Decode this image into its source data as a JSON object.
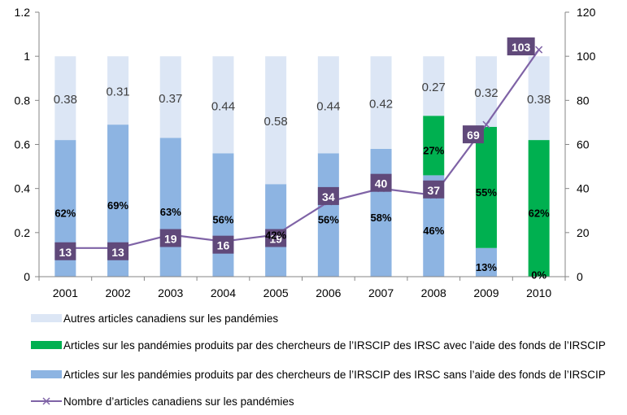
{
  "chart_data": {
    "type": "bar",
    "stacked": true,
    "categories": [
      "2001",
      "2002",
      "2003",
      "2004",
      "2005",
      "2006",
      "2007",
      "2008",
      "2009",
      "2010"
    ],
    "ylim_left": [
      0,
      1.2
    ],
    "yticks_left": [
      "0",
      "0.2",
      "0.4",
      "0.6",
      "0.8",
      "1",
      "1.2"
    ],
    "ylim_right": [
      0,
      120
    ],
    "yticks_right": [
      "0",
      "20",
      "40",
      "60",
      "80",
      "100",
      "120"
    ],
    "grid": false,
    "legend_position": "bottom",
    "series": [
      {
        "name": "Articles sur les pandémies produits par des chercheurs de l’IRSCIP des IRSC sans l’aide des fonds de l’IRSCIP",
        "color": "#8db4e2",
        "values": [
          0.62,
          0.69,
          0.63,
          0.56,
          0.42,
          0.56,
          0.58,
          0.46,
          0.13,
          0
        ],
        "labels": [
          "62%",
          "69%",
          "63%",
          "56%",
          "42%",
          "56%",
          "58%",
          "46%",
          "13%",
          ""
        ]
      },
      {
        "name": "Articles sur les pandémies produits par des chercheurs de l’IRSCIP des IRSC avec l’aide des fonds de l’IRSCIP",
        "color": "#00b050",
        "values": [
          0,
          0,
          0,
          0,
          0,
          0,
          0,
          0.27,
          0.55,
          0.62
        ],
        "labels": [
          "",
          "",
          "",
          "",
          "",
          "",
          "",
          "27%",
          "55%",
          "62%"
        ],
        "extra_label": "0%"
      },
      {
        "name": "Autres articles canadiens sur les pandémies",
        "color": "#dce6f5",
        "values": [
          0.38,
          0.31,
          0.37,
          0.44,
          0.58,
          0.44,
          0.42,
          0.27,
          0.32,
          0.38
        ],
        "labels": [
          "0.38",
          "0.31",
          "0.37",
          "0.44",
          "0.58",
          "0.44",
          "0.42",
          "0.27",
          "0.32",
          "0.38"
        ]
      },
      {
        "name": "Nombre d’articles canadiens sur les pandémies",
        "type": "line",
        "axis": "right",
        "color": "#7f63a6",
        "label_bg": "#60497a",
        "values": [
          13,
          13,
          19,
          16,
          19,
          34,
          40,
          37,
          69,
          103
        ]
      }
    ],
    "legend_order": [
      2,
      1,
      0,
      3
    ]
  }
}
